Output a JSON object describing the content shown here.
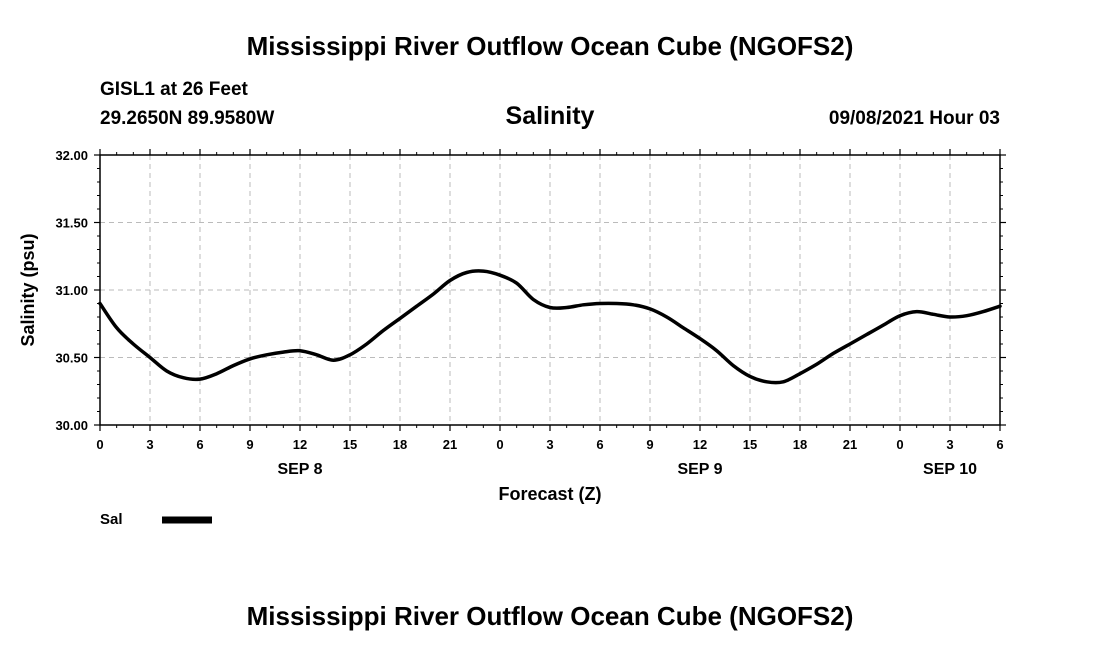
{
  "page": {
    "title_top": "Mississippi River Outflow Ocean Cube (NGOFS2)",
    "title_bottom": "Mississippi River Outflow Ocean Cube (NGOFS2)",
    "station": "GISL1 at 26 Feet",
    "coords": "29.2650N  89.9580W",
    "variable": "Salinity",
    "timestamp": "09/08/2021 Hour 03"
  },
  "chart_data": {
    "type": "line",
    "title": "Salinity",
    "xlabel": "Forecast (Z)",
    "ylabel": "Salinity (psu)",
    "ylim": [
      30.0,
      32.0
    ],
    "xlim": [
      0,
      54
    ],
    "grid": true,
    "y_ticks": [
      "30.00",
      "30.50",
      "31.00",
      "31.50",
      "32.00"
    ],
    "y_tick_values": [
      30.0,
      30.5,
      31.0,
      31.5,
      32.0
    ],
    "x_ticks": [
      "0",
      "3",
      "6",
      "9",
      "12",
      "15",
      "18",
      "21",
      "0",
      "3",
      "6",
      "9",
      "12",
      "15",
      "18",
      "21",
      "0",
      "3",
      "6"
    ],
    "date_labels": [
      {
        "label": "SEP 8",
        "at": 12
      },
      {
        "label": "SEP 9",
        "at": 36
      },
      {
        "label": "SEP 10",
        "at": 51
      }
    ],
    "legend_position": "bottom-left",
    "series": [
      {
        "name": "Sal",
        "color": "#000000",
        "x": [
          0,
          1,
          2,
          3,
          4,
          5,
          6,
          7,
          8,
          9,
          10,
          11,
          12,
          13,
          14,
          15,
          16,
          17,
          18,
          19,
          20,
          21,
          22,
          23,
          24,
          25,
          26,
          27,
          28,
          29,
          30,
          31,
          32,
          33,
          34,
          35,
          36,
          37,
          38,
          39,
          40,
          41,
          42,
          43,
          44,
          45,
          46,
          47,
          48,
          49,
          50,
          51,
          52,
          53,
          54
        ],
        "values": [
          30.9,
          30.72,
          30.6,
          30.5,
          30.4,
          30.35,
          30.34,
          30.38,
          30.44,
          30.49,
          30.52,
          30.54,
          30.55,
          30.52,
          30.48,
          30.52,
          30.6,
          30.7,
          30.79,
          30.88,
          30.97,
          31.07,
          31.13,
          31.14,
          31.11,
          31.05,
          30.93,
          30.87,
          30.87,
          30.89,
          30.9,
          30.9,
          30.89,
          30.86,
          30.8,
          30.72,
          30.64,
          30.55,
          30.44,
          30.36,
          30.32,
          30.32,
          30.38,
          30.45,
          30.53,
          30.6,
          30.67,
          30.74,
          30.81,
          30.84,
          30.82,
          30.8,
          30.81,
          30.84,
          30.88
        ]
      }
    ]
  }
}
